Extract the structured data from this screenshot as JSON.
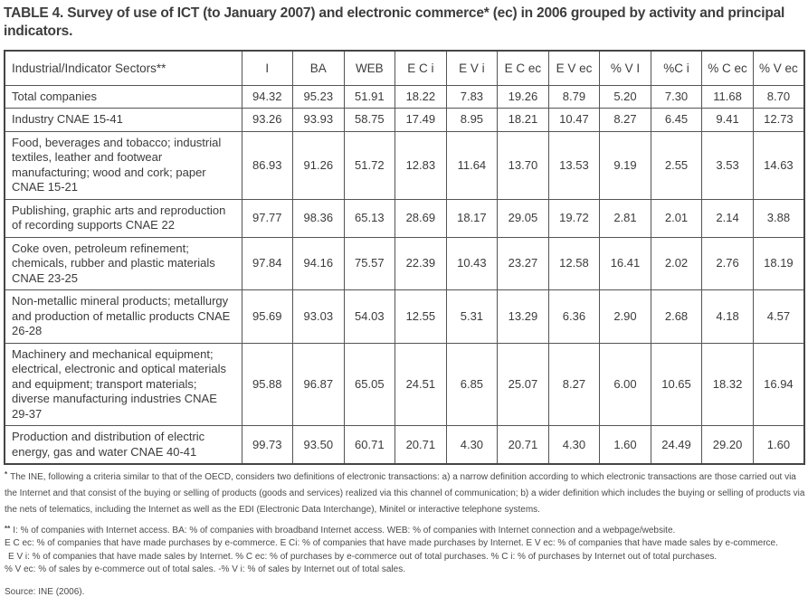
{
  "title": "TABLE 4. Survey of use of ICT (to January 2007) and electronic commerce* (ec) in 2006 grouped by activity and principal indicators.",
  "table": {
    "header": [
      "Industrial/Indicator Sectors**",
      "I",
      "BA",
      "WEB",
      "E C i",
      "E V i",
      "E C ec",
      "E V ec",
      "% V I",
      "%C i",
      "% C ec",
      "% V ec"
    ],
    "rows": [
      {
        "sector": "Total companies",
        "values": [
          "94.32",
          "95.23",
          "51.91",
          "18.22",
          "7.83",
          "19.26",
          "8.79",
          "5.20",
          "7.30",
          "11.68",
          "8.70"
        ]
      },
      {
        "sector": "Industry CNAE 15-41",
        "values": [
          "93.26",
          "93.93",
          "58.75",
          "17.49",
          "8.95",
          "18.21",
          "10.47",
          "8.27",
          "6.45",
          "9.41",
          "12.73"
        ]
      },
      {
        "sector": "Food, beverages and tobacco; industrial textiles, leather and footwear manufacturing; wood and cork; paper CNAE 15-21",
        "values": [
          "86.93",
          "91.26",
          "51.72",
          "12.83",
          "11.64",
          "13.70",
          "13.53",
          "9.19",
          "2.55",
          "3.53",
          "14.63"
        ]
      },
      {
        "sector": "Publishing, graphic arts and reproduction of recording supports CNAE 22",
        "values": [
          "97.77",
          "98.36",
          "65.13",
          "28.69",
          "18.17",
          "29.05",
          "19.72",
          "2.81",
          "2.01",
          "2.14",
          "3.88"
        ]
      },
      {
        "sector": "Coke oven, petroleum refinement; chemicals, rubber and plastic materials CNAE 23-25",
        "values": [
          "97.84",
          "94.16",
          "75.57",
          "22.39",
          "10.43",
          "23.27",
          "12.58",
          "16.41",
          "2.02",
          "2.76",
          "18.19"
        ]
      },
      {
        "sector": "Non-metallic mineral products; metallurgy and production of metallic products CNAE 26-28",
        "values": [
          "95.69",
          "93.03",
          "54.03",
          "12.55",
          "5.31",
          "13.29",
          "6.36",
          "2.90",
          "2.68",
          "4.18",
          "4.57"
        ]
      },
      {
        "sector": "Machinery and mechanical equipment; electrical, electronic and optical materials and equipment; transport materials; diverse manufacturing industries CNAE 29-37",
        "values": [
          "95.88",
          "96.87",
          "65.05",
          "24.51",
          "6.85",
          "25.07",
          "8.27",
          "6.00",
          "10.65",
          "18.32",
          "16.94"
        ]
      },
      {
        "sector": "Production and distribution of electric energy, gas and water CNAE 40-41",
        "values": [
          "99.73",
          "93.50",
          "60.71",
          "20.71",
          "4.30",
          "20.71",
          "4.30",
          "1.60",
          "24.49",
          "29.20",
          "1.60"
        ]
      }
    ]
  },
  "footnotes": {
    "star_marker": "*",
    "star_text": "The INE, following a criteria similar to that of the OECD, considers two definitions of electronic transactions: a) a narrow definition according to which electronic transactions are those carried out via the Internet and that consist of the buying or selling of products (goods and services) realized via this channel of communication; b) a wider definition which includes the buying or selling of products via the nets of telematics, including the Internet as well as the EDI (Electronic Data Interchange), Minitel or interactive telephone systems.",
    "doublestar_marker": "**",
    "doublestar_lines": [
      "I: % of companies with Internet access. BA: % of companies with broadband Internet access. WEB: % of companies with Internet connection and a webpage/website.",
      "E C ec: % of companies that have made purchases by e-commerce. E Ci: % of companies that have made purchases by Internet. E V ec: % of companies that have made sales by e-commerce.",
      "E V i: % of companies that have made sales by Internet. % C ec: % of purchases by e-commerce out of total purchases. % C i: % of purchases by Internet out of total purchases.",
      "% V ec: % of sales by e-commerce out of total sales. -% V i: % of sales by Internet out of total sales."
    ],
    "source": "Source: INE (2006)."
  }
}
